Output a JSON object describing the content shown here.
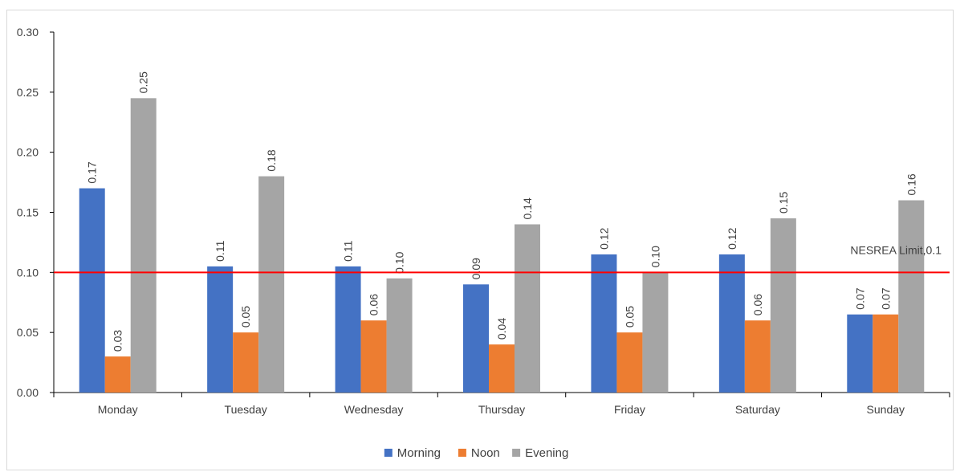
{
  "chart_data": {
    "type": "bar",
    "categories": [
      "Monday",
      "Tuesday",
      "Wednesday",
      "Thursday",
      "Friday",
      "Saturday",
      "Sunday"
    ],
    "series": [
      {
        "name": "Morning",
        "color": "#4472c4",
        "values": [
          0.17,
          0.105,
          0.105,
          0.09,
          0.115,
          0.115,
          0.065
        ],
        "labels": [
          "0.17",
          "0.11",
          "0.11",
          "0.09",
          "0.12",
          "0.12",
          "0.07"
        ]
      },
      {
        "name": "Noon",
        "color": "#ed7d31",
        "values": [
          0.03,
          0.05,
          0.06,
          0.04,
          0.05,
          0.06,
          0.065
        ],
        "labels": [
          "0.03",
          "0.05",
          "0.06",
          "0.04",
          "0.05",
          "0.06",
          "0.07"
        ]
      },
      {
        "name": "Evening",
        "color": "#a5a5a5",
        "values": [
          0.245,
          0.18,
          0.095,
          0.14,
          0.1,
          0.145,
          0.16
        ],
        "labels": [
          "0.25",
          "0.18",
          "0.10",
          "0.14",
          "0.10",
          "0.15",
          "0.16"
        ]
      }
    ],
    "y_ticks": [
      "0.00",
      "0.05",
      "0.10",
      "0.15",
      "0.20",
      "0.25",
      "0.30"
    ],
    "ylim": [
      0,
      0.3
    ],
    "reference_line": {
      "value": 0.1,
      "label": "NESREA Limit,0.1",
      "color": "#ff0000"
    },
    "title": "",
    "xlabel": "",
    "ylabel": "",
    "legend_position": "bottom",
    "grid": false
  }
}
